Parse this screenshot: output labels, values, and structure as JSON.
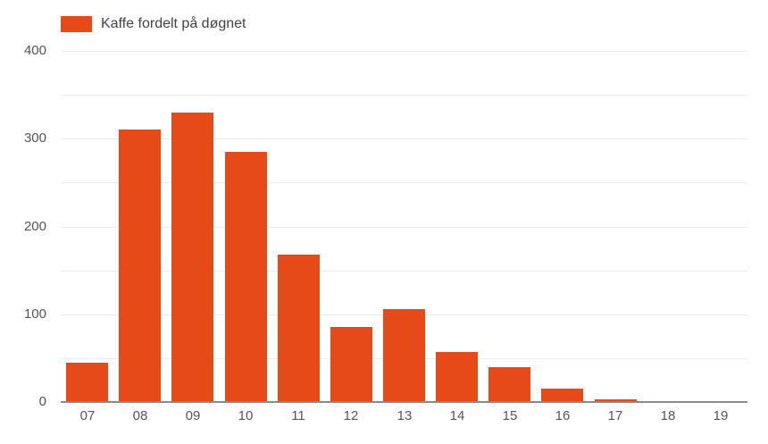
{
  "legend": {
    "label": "Kaffe fordelt på døgnet",
    "color": "#e64a19"
  },
  "y_axis": {
    "ticks": [
      "0",
      "100",
      "200",
      "300",
      "400"
    ]
  },
  "chart_data": {
    "type": "bar",
    "title": "",
    "xlabel": "",
    "ylabel": "",
    "categories": [
      "07",
      "08",
      "09",
      "10",
      "11",
      "12",
      "13",
      "14",
      "15",
      "16",
      "17",
      "18",
      "19"
    ],
    "series": [
      {
        "name": "Kaffe fordelt på døgnet",
        "color": "#e64a19",
        "values": [
          45,
          310,
          330,
          285,
          168,
          85,
          106,
          57,
          40,
          15,
          3,
          1,
          0.5
        ]
      }
    ],
    "ylim": [
      0,
      400
    ],
    "yticks": [
      0,
      100,
      200,
      300,
      400
    ],
    "grid": true,
    "legend_position": "top-left"
  }
}
